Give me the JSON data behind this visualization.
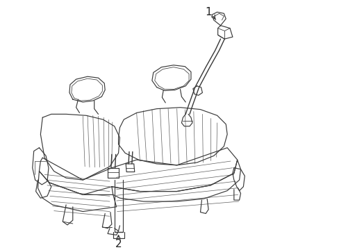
{
  "bg_color": "#ffffff",
  "line_color": "#3a3a3a",
  "line_width": 0.85,
  "label_fontsize": 11,
  "label_1": "1",
  "label_2": "2"
}
